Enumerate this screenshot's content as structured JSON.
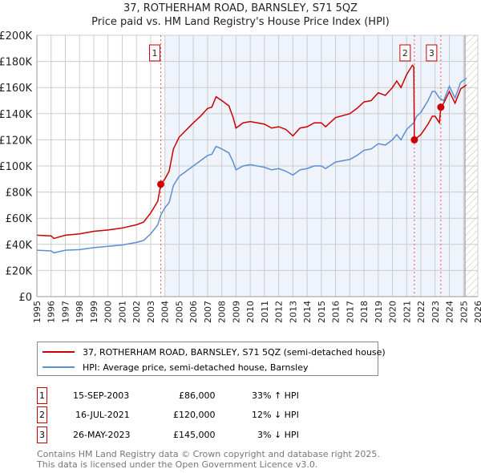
{
  "title": "37, ROTHERHAM ROAD, BARNSLEY, S71 5QZ",
  "subtitle": "Price paid vs. HM Land Registry's House Price Index (HPI)",
  "chart_data": {
    "type": "line",
    "xlim": [
      1995,
      2026
    ],
    "ylim": [
      0,
      200000
    ],
    "y_ticks": [
      0,
      20000,
      40000,
      60000,
      80000,
      100000,
      120000,
      140000,
      160000,
      180000,
      200000
    ],
    "y_tick_labels": [
      "£0",
      "£20K",
      "£40K",
      "£60K",
      "£80K",
      "£100K",
      "£120K",
      "£140K",
      "£160K",
      "£180K",
      "£200K"
    ],
    "x_ticks": [
      1995,
      1996,
      1997,
      1998,
      1999,
      2000,
      2001,
      2002,
      2003,
      2004,
      2005,
      2006,
      2007,
      2008,
      2009,
      2010,
      2011,
      2012,
      2013,
      2014,
      2015,
      2016,
      2017,
      2018,
      2019,
      2020,
      2021,
      2022,
      2023,
      2024,
      2025,
      2026
    ],
    "grid": true,
    "series": [
      {
        "name": "37, ROTHERHAM ROAD, BARNSLEY, S71 5QZ (semi-detached house)",
        "color": "#cc0000",
        "x": [
          1995,
          1996,
          1996.2,
          1997,
          1998,
          1999,
          2000,
          2001,
          2002,
          2002.5,
          2003,
          2003.5,
          2003.71,
          2004,
          2004.3,
          2004.6,
          2005,
          2006,
          2006.5,
          2007,
          2007.3,
          2007.6,
          2008,
          2008.5,
          2008.8,
          2009,
          2009.5,
          2010,
          2011,
          2011.5,
          2012,
          2012.5,
          2013,
          2013.5,
          2014,
          2014.5,
          2015,
          2015.3,
          2016,
          2017,
          2017.5,
          2018,
          2018.5,
          2019,
          2019.5,
          2020,
          2020.3,
          2020.6,
          2021,
          2021.4,
          2021.5,
          2021.54,
          2022,
          2022.5,
          2022.8,
          2023,
          2023.3,
          2023.4,
          2023.6,
          2024,
          2024.4,
          2024.8,
          2025.2
        ],
        "y": [
          47,
          46.5,
          44.5,
          47,
          48,
          50,
          51,
          52.5,
          55,
          57,
          64,
          73,
          86,
          90,
          96,
          113,
          122,
          133,
          138,
          144,
          145,
          153,
          150,
          146,
          137,
          129,
          133,
          134,
          132,
          129,
          130,
          128,
          123,
          129,
          130,
          133,
          133,
          130,
          137,
          140,
          144,
          149,
          150,
          156,
          154,
          160,
          165,
          160,
          170,
          177,
          176,
          120,
          124,
          132,
          138,
          138,
          133,
          145,
          148,
          157,
          148,
          159,
          162
        ]
      },
      {
        "name": "HPI: Average price, semi-detached house, Barnsley",
        "color": "#5b8fd4",
        "x": [
          1995,
          1996,
          1996.2,
          1997,
          1998,
          1999,
          2000,
          2001,
          2002,
          2002.5,
          2003,
          2003.5,
          2003.7,
          2004,
          2004.3,
          2004.6,
          2005,
          2006,
          2006.5,
          2007,
          2007.3,
          2007.6,
          2008,
          2008.5,
          2008.8,
          2009,
          2009.5,
          2010,
          2011,
          2011.5,
          2012,
          2012.5,
          2013,
          2013.5,
          2014,
          2014.5,
          2015,
          2015.3,
          2016,
          2017,
          2017.5,
          2018,
          2018.5,
          2019,
          2019.5,
          2020,
          2020.3,
          2020.6,
          2021,
          2021.5,
          2021.7,
          2022,
          2022.5,
          2022.8,
          2023,
          2023.3,
          2023.6,
          2024,
          2024.4,
          2024.8,
          2025.2
        ],
        "y": [
          35.5,
          35,
          33.5,
          35.5,
          36,
          37.5,
          38.5,
          39.5,
          41.5,
          43,
          48,
          55,
          62,
          68,
          72,
          85,
          92,
          100,
          104,
          108,
          109,
          115,
          113,
          110,
          103,
          97,
          100,
          101,
          99,
          97,
          98,
          96,
          93,
          97,
          98,
          100,
          100,
          98,
          103,
          105,
          108,
          112,
          113,
          117,
          116,
          120,
          124,
          120,
          128,
          133,
          138,
          141,
          150,
          157,
          157,
          152,
          150,
          161,
          152,
          164,
          167
        ]
      }
    ],
    "y_unit": "thousands GBP",
    "annotations": [
      {
        "label": "1",
        "x": 2003.71,
        "y": 86
      },
      {
        "label": "2",
        "x": 2021.54,
        "y": 120
      },
      {
        "label": "3",
        "x": 2023.4,
        "y": 145
      }
    ],
    "legend_placement": "below"
  },
  "sales": [
    {
      "num": "1",
      "date": "15-SEP-2003",
      "price": "£86,000",
      "hpi": "33% ↑ HPI"
    },
    {
      "num": "2",
      "date": "16-JUL-2021",
      "price": "£120,000",
      "hpi": "12% ↓ HPI"
    },
    {
      "num": "3",
      "date": "26-MAY-2023",
      "price": "£145,000",
      "hpi": "3% ↓ HPI"
    }
  ],
  "footer": [
    "Contains HM Land Registry data © Crown copyright and database right 2025.",
    "This data is licensed under the Open Government Licence v3.0."
  ]
}
